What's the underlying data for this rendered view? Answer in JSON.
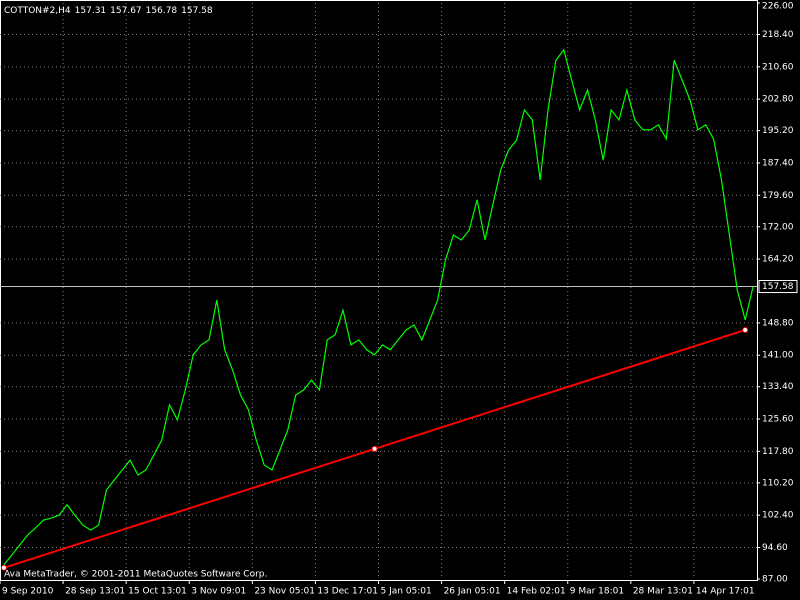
{
  "chart_data": {
    "type": "line",
    "symbol": "COTTON#2,H4",
    "ohlc": [
      157.31,
      157.67,
      156.78,
      157.58
    ],
    "footer": "Ava MetaTrader, © 2001-2011 MetaQuotes Software Corp.",
    "categories": [
      "9 Sep 2010",
      null,
      null,
      null,
      null,
      null,
      null,
      null,
      "28 Sep 13:01",
      null,
      null,
      null,
      null,
      null,
      null,
      null,
      "15 Oct 13:01",
      null,
      null,
      null,
      null,
      null,
      null,
      null,
      "3 Nov 09:01",
      null,
      null,
      null,
      null,
      null,
      null,
      null,
      "23 Nov 05:01",
      null,
      null,
      null,
      null,
      null,
      null,
      null,
      "13 Dec 17:01",
      null,
      null,
      null,
      null,
      null,
      null,
      null,
      "5 Jan 05:01",
      null,
      null,
      null,
      null,
      null,
      null,
      null,
      "26 Jan 05:01",
      null,
      null,
      null,
      null,
      null,
      null,
      null,
      "14 Feb 02:01",
      null,
      null,
      null,
      null,
      null,
      null,
      null,
      "9 Mar 18:01",
      null,
      null,
      null,
      null,
      null,
      null,
      null,
      "28 Mar 13:01",
      null,
      null,
      null,
      null,
      null,
      null,
      null,
      "14 Apr 17:01",
      null,
      null,
      null,
      null,
      null,
      null,
      null
    ],
    "series": [
      {
        "name": "COTTON#2",
        "color": "#00ff00",
        "values": [
          90.4,
          92.8,
          95.2,
          97.6,
          99.3,
          101.2,
          101.7,
          102.4,
          104.9,
          102.4,
          100.0,
          98.8,
          100.0,
          108.5,
          110.9,
          113.3,
          115.7,
          112.1,
          113.3,
          116.9,
          120.5,
          129.0,
          125.4,
          132.6,
          141.1,
          143.5,
          144.7,
          154.3,
          142.3,
          137.4,
          131.4,
          127.8,
          120.5,
          114.5,
          113.3,
          118.1,
          123.0,
          131.4,
          132.6,
          135.0,
          132.6,
          144.7,
          145.9,
          151.9,
          143.5,
          144.7,
          142.3,
          141.1,
          143.5,
          142.3,
          144.7,
          147.1,
          148.3,
          144.7,
          149.5,
          154.3,
          164.0,
          170.0,
          168.8,
          171.2,
          178.5,
          168.8,
          177.3,
          185.7,
          190.5,
          192.9,
          200.2,
          197.8,
          183.3,
          200.2,
          212.2,
          214.7,
          207.4,
          200.2,
          205.0,
          197.8,
          188.1,
          200.2,
          197.8,
          205.0,
          197.8,
          195.4,
          195.4,
          196.6,
          193.2,
          212.2,
          207.4,
          202.6,
          195.4,
          196.6,
          193.2,
          183.3,
          170.0,
          156.7,
          149.5,
          157.58
        ]
      }
    ],
    "trendline": {
      "color": "#ff0000",
      "values": [
        89.7,
        147.1
      ]
    },
    "current_price": {
      "value": 157.58,
      "label": "157.58"
    },
    "ylim": [
      87,
      226
    ],
    "yticks": [
      {
        "value": 87,
        "label": "87.00"
      },
      {
        "value": 94.6,
        "label": "94.60"
      },
      {
        "value": 102.4,
        "label": "102.40"
      },
      {
        "value": 110.2,
        "label": "110.20"
      },
      {
        "value": 117.8,
        "label": "117.80"
      },
      {
        "value": 125.6,
        "label": "125.60"
      },
      {
        "value": 133.4,
        "label": "133.40"
      },
      {
        "value": 141,
        "label": "141.00"
      },
      {
        "value": 148.8,
        "label": "148.80"
      },
      {
        "value": 164.2,
        "label": "164.20"
      },
      {
        "value": 172,
        "label": "172.00"
      },
      {
        "value": 179.6,
        "label": "179.60"
      },
      {
        "value": 187.4,
        "label": "187.40"
      },
      {
        "value": 195.2,
        "label": "195.20"
      },
      {
        "value": 202.8,
        "label": "202.80"
      },
      {
        "value": 210.6,
        "label": "210.60"
      },
      {
        "value": 218.4,
        "label": "218.40"
      },
      {
        "value": 226,
        "label": "226.00"
      }
    ],
    "grid": true
  }
}
